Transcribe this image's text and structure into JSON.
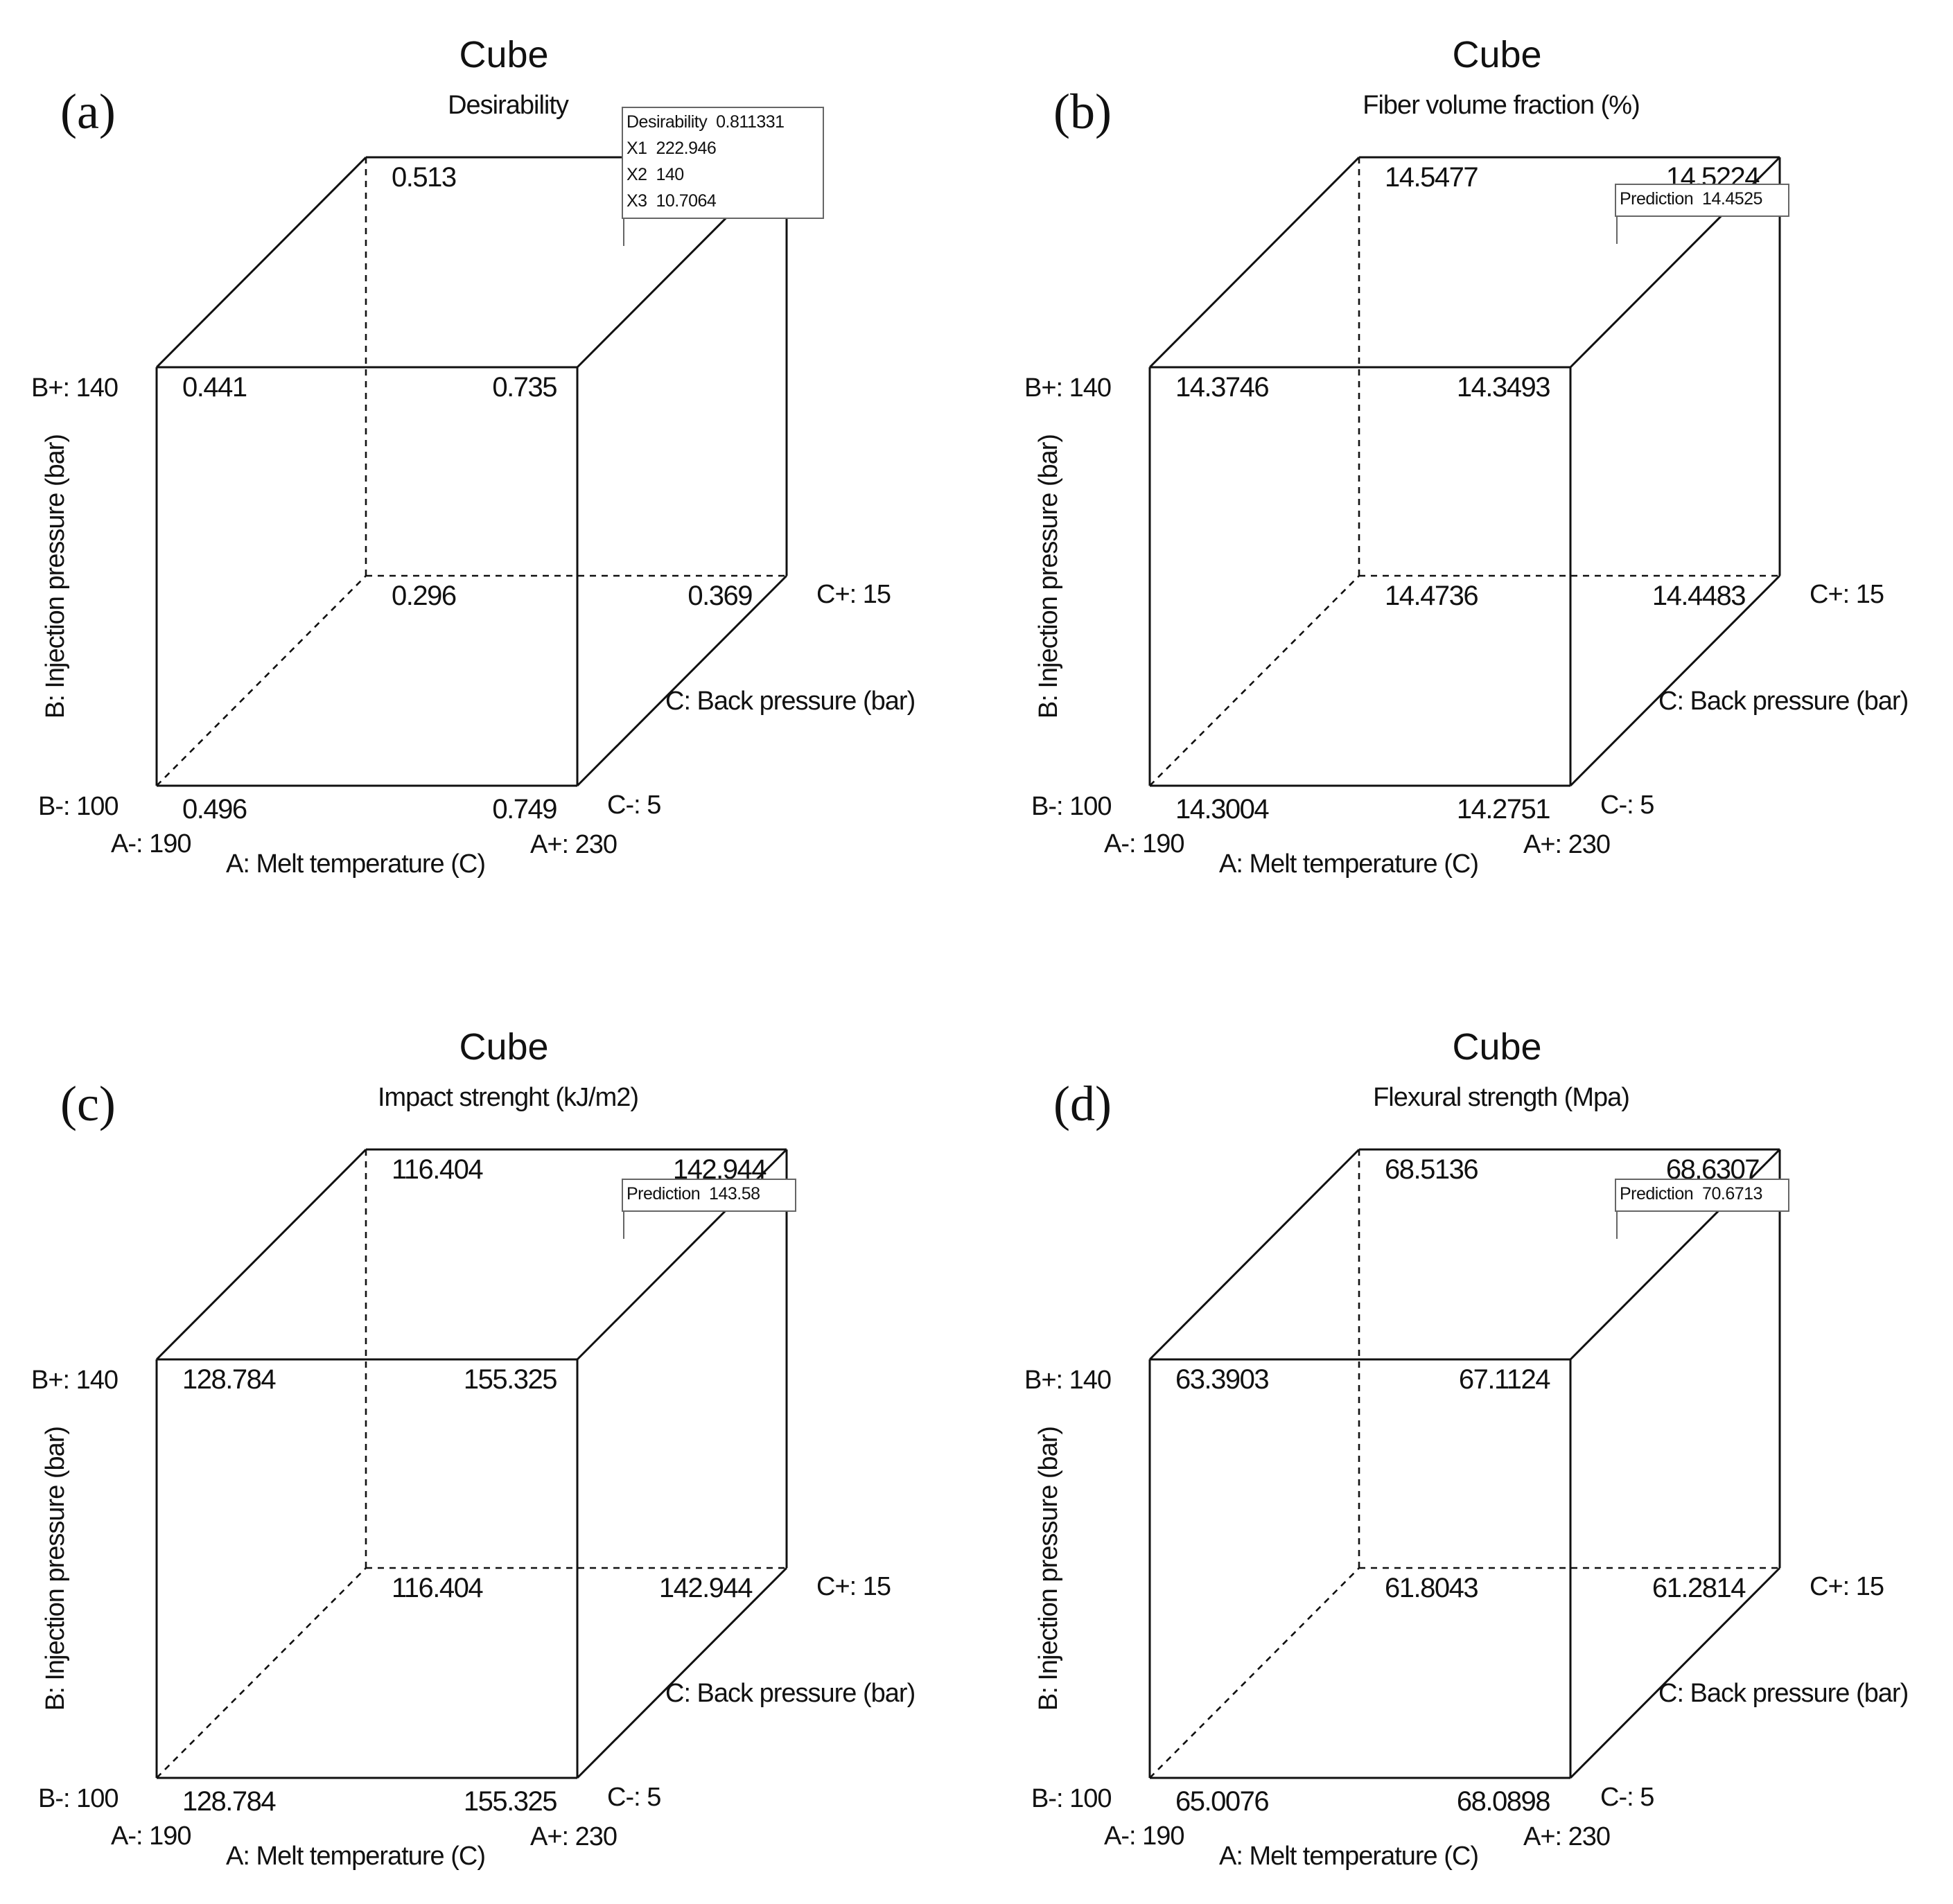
{
  "figure": {
    "cube_labels": {
      "a_low": "A-: 190",
      "a_high": "A+: 230",
      "a_axis": "A: Melt temperature (C)",
      "b_low": "B-: 100",
      "b_high": "B+: 140",
      "b_axis": "B: Injection pressure (bar)",
      "c_low": "C-: 5",
      "c_high": "C+: 15",
      "c_axis": "C: Back pressure (bar)"
    }
  },
  "chart_data": [
    {
      "type": "cube",
      "panel": "(a)",
      "title": "Cube",
      "subtitle": "Desirability",
      "factors": {
        "A": {
          "name": "Melt temperature (C)",
          "low": 190,
          "high": 230
        },
        "B": {
          "name": "Injection pressure (bar)",
          "low": 100,
          "high": 140
        },
        "C": {
          "name": "Back pressure (bar)",
          "low": 5,
          "high": 15
        }
      },
      "corners": [
        {
          "A": "-",
          "B": "-",
          "C": "-",
          "value": "0.496"
        },
        {
          "A": "+",
          "B": "-",
          "C": "-",
          "value": "0.749"
        },
        {
          "A": "-",
          "B": "+",
          "C": "-",
          "value": "0.441"
        },
        {
          "A": "+",
          "B": "+",
          "C": "-",
          "value": "0.735"
        },
        {
          "A": "-",
          "B": "-",
          "C": "+",
          "value": "0.296"
        },
        {
          "A": "+",
          "B": "-",
          "C": "+",
          "value": "0.369"
        },
        {
          "A": "-",
          "B": "+",
          "C": "+",
          "value": "0.513"
        },
        {
          "A": "+",
          "B": "+",
          "C": "+",
          "value": ""
        }
      ],
      "tooltip": [
        "Desirability  0.811331",
        "X1  222.946",
        "X2  140",
        "X3  10.7064"
      ]
    },
    {
      "type": "cube",
      "panel": "(b)",
      "title": "Cube",
      "subtitle": "Fiber volume fraction (%)",
      "factors": {
        "A": {
          "name": "Melt temperature (C)",
          "low": 190,
          "high": 230
        },
        "B": {
          "name": "Injection pressure (bar)",
          "low": 100,
          "high": 140
        },
        "C": {
          "name": "Back pressure (bar)",
          "low": 5,
          "high": 15
        }
      },
      "corners": [
        {
          "A": "-",
          "B": "-",
          "C": "-",
          "value": "14.3004"
        },
        {
          "A": "+",
          "B": "-",
          "C": "-",
          "value": "14.2751"
        },
        {
          "A": "-",
          "B": "+",
          "C": "-",
          "value": "14.3746"
        },
        {
          "A": "+",
          "B": "+",
          "C": "-",
          "value": "14.3493"
        },
        {
          "A": "-",
          "B": "-",
          "C": "+",
          "value": "14.4736"
        },
        {
          "A": "+",
          "B": "-",
          "C": "+",
          "value": "14.4483"
        },
        {
          "A": "-",
          "B": "+",
          "C": "+",
          "value": "14.5477"
        },
        {
          "A": "+",
          "B": "+",
          "C": "+",
          "value": "14.5224"
        }
      ],
      "tooltip": [
        "Prediction  14.4525"
      ]
    },
    {
      "type": "cube",
      "panel": "(c)",
      "title": "Cube",
      "subtitle": "Impact strenght (kJ/m2)",
      "factors": {
        "A": {
          "name": "Melt temperature (C)",
          "low": 190,
          "high": 230
        },
        "B": {
          "name": "Injection pressure (bar)",
          "low": 100,
          "high": 140
        },
        "C": {
          "name": "Back pressure (bar)",
          "low": 5,
          "high": 15
        }
      },
      "corners": [
        {
          "A": "-",
          "B": "-",
          "C": "-",
          "value": "128.784"
        },
        {
          "A": "+",
          "B": "-",
          "C": "-",
          "value": "155.325"
        },
        {
          "A": "-",
          "B": "+",
          "C": "-",
          "value": "128.784"
        },
        {
          "A": "+",
          "B": "+",
          "C": "-",
          "value": "155.325"
        },
        {
          "A": "-",
          "B": "-",
          "C": "+",
          "value": "116.404"
        },
        {
          "A": "+",
          "B": "-",
          "C": "+",
          "value": "142.944"
        },
        {
          "A": "-",
          "B": "+",
          "C": "+",
          "value": "116.404"
        },
        {
          "A": "+",
          "B": "+",
          "C": "+",
          "value": "142.944"
        }
      ],
      "tooltip": [
        "Prediction  143.58"
      ]
    },
    {
      "type": "cube",
      "panel": "(d)",
      "title": "Cube",
      "subtitle": "Flexural strength (Mpa)",
      "factors": {
        "A": {
          "name": "Melt temperature (C)",
          "low": 190,
          "high": 230
        },
        "B": {
          "name": "Injection pressure (bar)",
          "low": 100,
          "high": 140
        },
        "C": {
          "name": "Back pressure (bar)",
          "low": 5,
          "high": 15
        }
      },
      "corners": [
        {
          "A": "-",
          "B": "-",
          "C": "-",
          "value": "65.0076"
        },
        {
          "A": "+",
          "B": "-",
          "C": "-",
          "value": "68.0898"
        },
        {
          "A": "-",
          "B": "+",
          "C": "-",
          "value": "63.3903"
        },
        {
          "A": "+",
          "B": "+",
          "C": "-",
          "value": "67.1124"
        },
        {
          "A": "-",
          "B": "-",
          "C": "+",
          "value": "61.8043"
        },
        {
          "A": "+",
          "B": "-",
          "C": "+",
          "value": "61.2814"
        },
        {
          "A": "-",
          "B": "+",
          "C": "+",
          "value": "68.5136"
        },
        {
          "A": "+",
          "B": "+",
          "C": "+",
          "value": "68.6307"
        }
      ],
      "tooltip": [
        "Prediction  70.6713"
      ]
    }
  ]
}
